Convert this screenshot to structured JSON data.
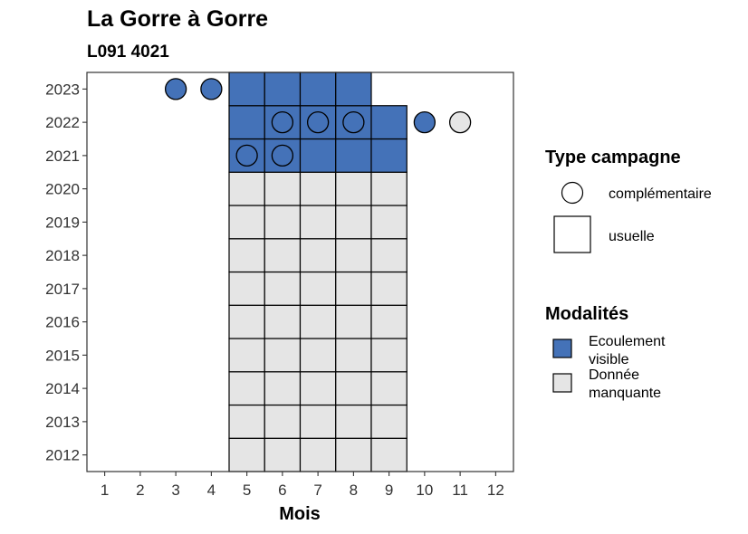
{
  "header": {
    "title": "La Gorre à Gorre",
    "subtitle": "L091 4021"
  },
  "colors": {
    "ecoulement_visible": "#4472B8",
    "donnee_manquante": "#E5E5E5",
    "outline": "#000000",
    "panel_border": "#333333"
  },
  "legend_type": {
    "title": "Type campagne",
    "items": [
      {
        "shape": "circle",
        "label": "complémentaire"
      },
      {
        "shape": "square",
        "label": "usuelle"
      }
    ]
  },
  "legend_modalites": {
    "title": "Modalités",
    "items": [
      {
        "key": "ecoulement_visible",
        "line1": "Ecoulement",
        "line2": "visible"
      },
      {
        "key": "donnee_manquante",
        "line1": "Donnée",
        "line2": "manquante"
      }
    ]
  },
  "chart_data": {
    "type": "heatmap",
    "title": "La Gorre à Gorre",
    "subtitle": "L091 4021",
    "xlabel": "Mois",
    "ylabel": "",
    "x_ticks": [
      1,
      2,
      3,
      4,
      5,
      6,
      7,
      8,
      9,
      10,
      11,
      12
    ],
    "y_ticks": [
      2012,
      2013,
      2014,
      2015,
      2016,
      2017,
      2018,
      2019,
      2020,
      2021,
      2022,
      2023
    ],
    "xlim": [
      0.5,
      12.5
    ],
    "ylim": [
      2011.5,
      2023.5
    ],
    "grid": false,
    "legend_position": "right",
    "usuelle": [
      {
        "year": 2012,
        "months": [
          5,
          6,
          7,
          8,
          9
        ],
        "modalite": "Donnée manquante"
      },
      {
        "year": 2013,
        "months": [
          5,
          6,
          7,
          8,
          9
        ],
        "modalite": "Donnée manquante"
      },
      {
        "year": 2014,
        "months": [
          5,
          6,
          7,
          8,
          9
        ],
        "modalite": "Donnée manquante"
      },
      {
        "year": 2015,
        "months": [
          5,
          6,
          7,
          8,
          9
        ],
        "modalite": "Donnée manquante"
      },
      {
        "year": 2016,
        "months": [
          5,
          6,
          7,
          8,
          9
        ],
        "modalite": "Donnée manquante"
      },
      {
        "year": 2017,
        "months": [
          5,
          6,
          7,
          8,
          9
        ],
        "modalite": "Donnée manquante"
      },
      {
        "year": 2018,
        "months": [
          5,
          6,
          7,
          8,
          9
        ],
        "modalite": "Donnée manquante"
      },
      {
        "year": 2019,
        "months": [
          5,
          6,
          7,
          8,
          9
        ],
        "modalite": "Donnée manquante"
      },
      {
        "year": 2020,
        "months": [
          5,
          6,
          7,
          8,
          9
        ],
        "modalite": "Donnée manquante"
      },
      {
        "year": 2021,
        "months": [
          5,
          6,
          7,
          8,
          9
        ],
        "modalite": "Ecoulement visible"
      },
      {
        "year": 2022,
        "months": [
          5,
          6,
          7,
          8,
          9
        ],
        "modalite": "Ecoulement visible"
      },
      {
        "year": 2023,
        "months": [
          5,
          6,
          7,
          8
        ],
        "modalite": "Ecoulement visible"
      }
    ],
    "complementaire": [
      {
        "year": 2023,
        "month": 3,
        "modalite": "Ecoulement visible"
      },
      {
        "year": 2023,
        "month": 4,
        "modalite": "Ecoulement visible"
      },
      {
        "year": 2022,
        "month": 6,
        "modalite": "Ecoulement visible"
      },
      {
        "year": 2022,
        "month": 7,
        "modalite": "Ecoulement visible"
      },
      {
        "year": 2022,
        "month": 8,
        "modalite": "Ecoulement visible"
      },
      {
        "year": 2022,
        "month": 10,
        "modalite": "Ecoulement visible"
      },
      {
        "year": 2022,
        "month": 11,
        "modalite": "Donnée manquante"
      },
      {
        "year": 2021,
        "month": 5,
        "modalite": "Ecoulement visible"
      },
      {
        "year": 2021,
        "month": 6,
        "modalite": "Ecoulement visible"
      }
    ]
  }
}
